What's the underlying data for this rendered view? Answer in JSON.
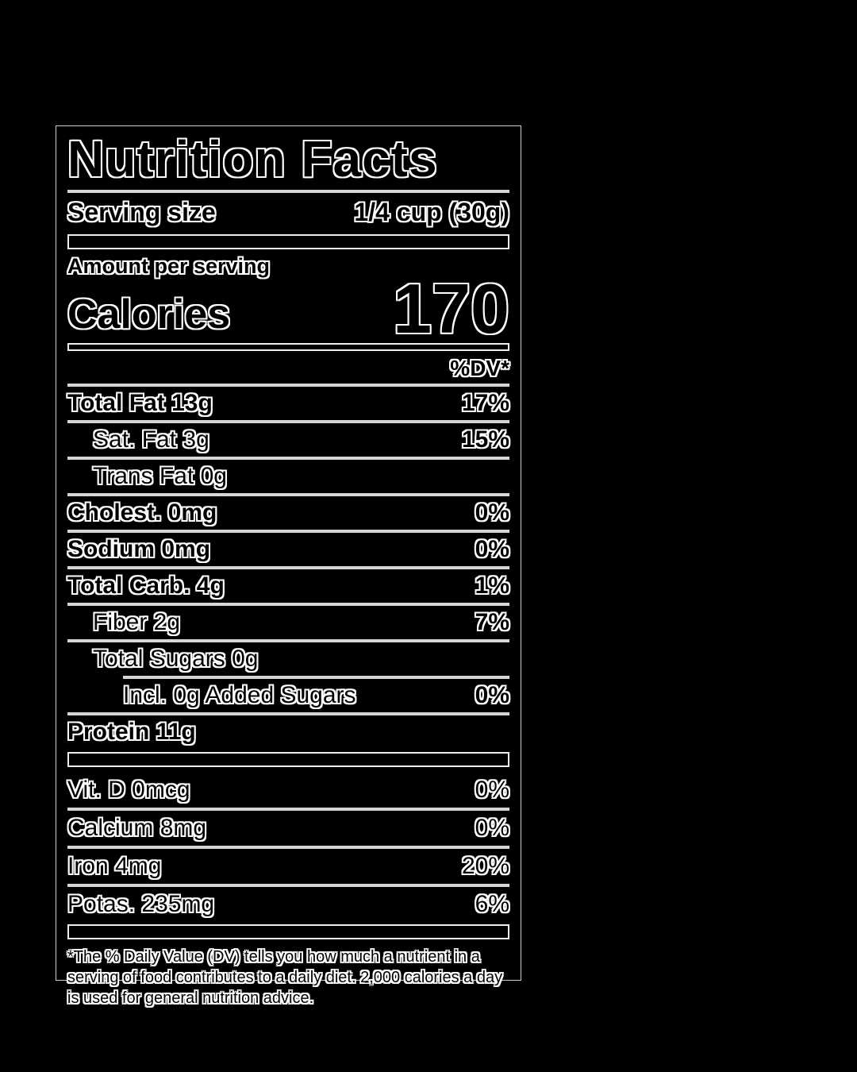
{
  "label": {
    "title": "Nutrition Facts",
    "serving": {
      "label": "Serving size",
      "value": "1/4 cup (30g)"
    },
    "amount_per_serving": "Amount per serving",
    "calories_label": "Calories",
    "calories_value": "170",
    "dv_header": "%DV*",
    "rows": [
      {
        "name": "Total Fat 13g",
        "dv": "17%"
      },
      {
        "name": "Sat. Fat 3g",
        "dv": "15%"
      },
      {
        "name": "Trans Fat 0g",
        "dv": ""
      },
      {
        "name": "Cholest. 0mg",
        "dv": "0%"
      },
      {
        "name": "Sodium 0mg",
        "dv": "0%"
      },
      {
        "name": "Total Carb. 4g",
        "dv": "1%"
      },
      {
        "name": "Fiber 2g",
        "dv": "7%"
      },
      {
        "name": "Total Sugars 0g",
        "dv": ""
      },
      {
        "name": "Incl. 0g Added Sugars",
        "dv": "0%"
      },
      {
        "name": "Protein 11g",
        "dv": ""
      }
    ],
    "vitamins": [
      {
        "name": "Vit. D 0mcg",
        "dv": "0%"
      },
      {
        "name": "Calcium 8mg",
        "dv": "0%"
      },
      {
        "name": "Iron 4mg",
        "dv": "20%"
      },
      {
        "name": "Potas. 235mg",
        "dv": "6%"
      }
    ],
    "footnote": "*The % Daily Value (DV) tells you how much a nutrient in a serving of food contributes to a daily diet. 2,000 calories a day is used for general nutrition advice."
  },
  "colors": {
    "canvas_background": "#000000",
    "text": "#000000",
    "halo": "#ffffff",
    "rule": "#d6d6d6"
  }
}
